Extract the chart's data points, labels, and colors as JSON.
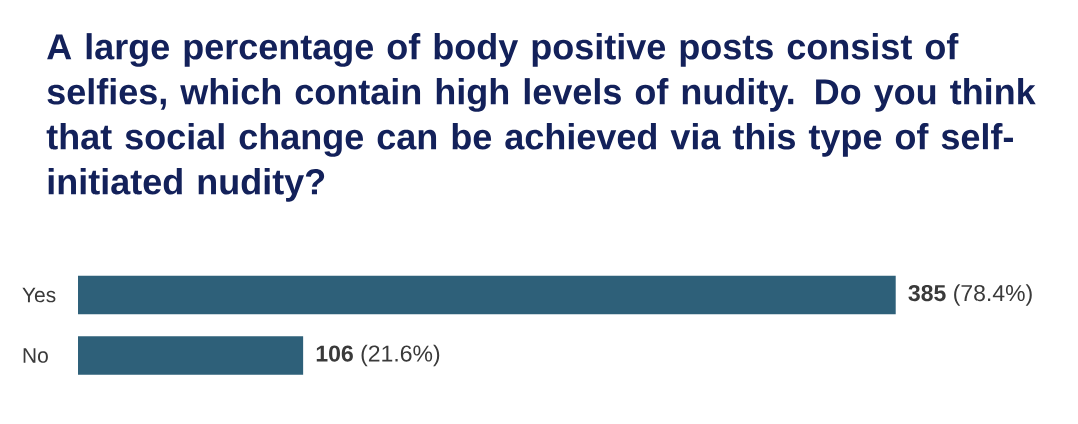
{
  "chart_data": {
    "type": "bar",
    "orientation": "horizontal",
    "title": "A large percentage of body positive posts consist of selfies, which contain high levels of nudity. Do you think that social change can be achieved via this type of self-initiated nudity?",
    "categories": [
      "Yes",
      "No"
    ],
    "values": [
      385,
      106
    ],
    "color": "#2e6079",
    "value_labels": [
      "**385** (78.4%)",
      "**106** (21.6%)"
    ]
  }
}
